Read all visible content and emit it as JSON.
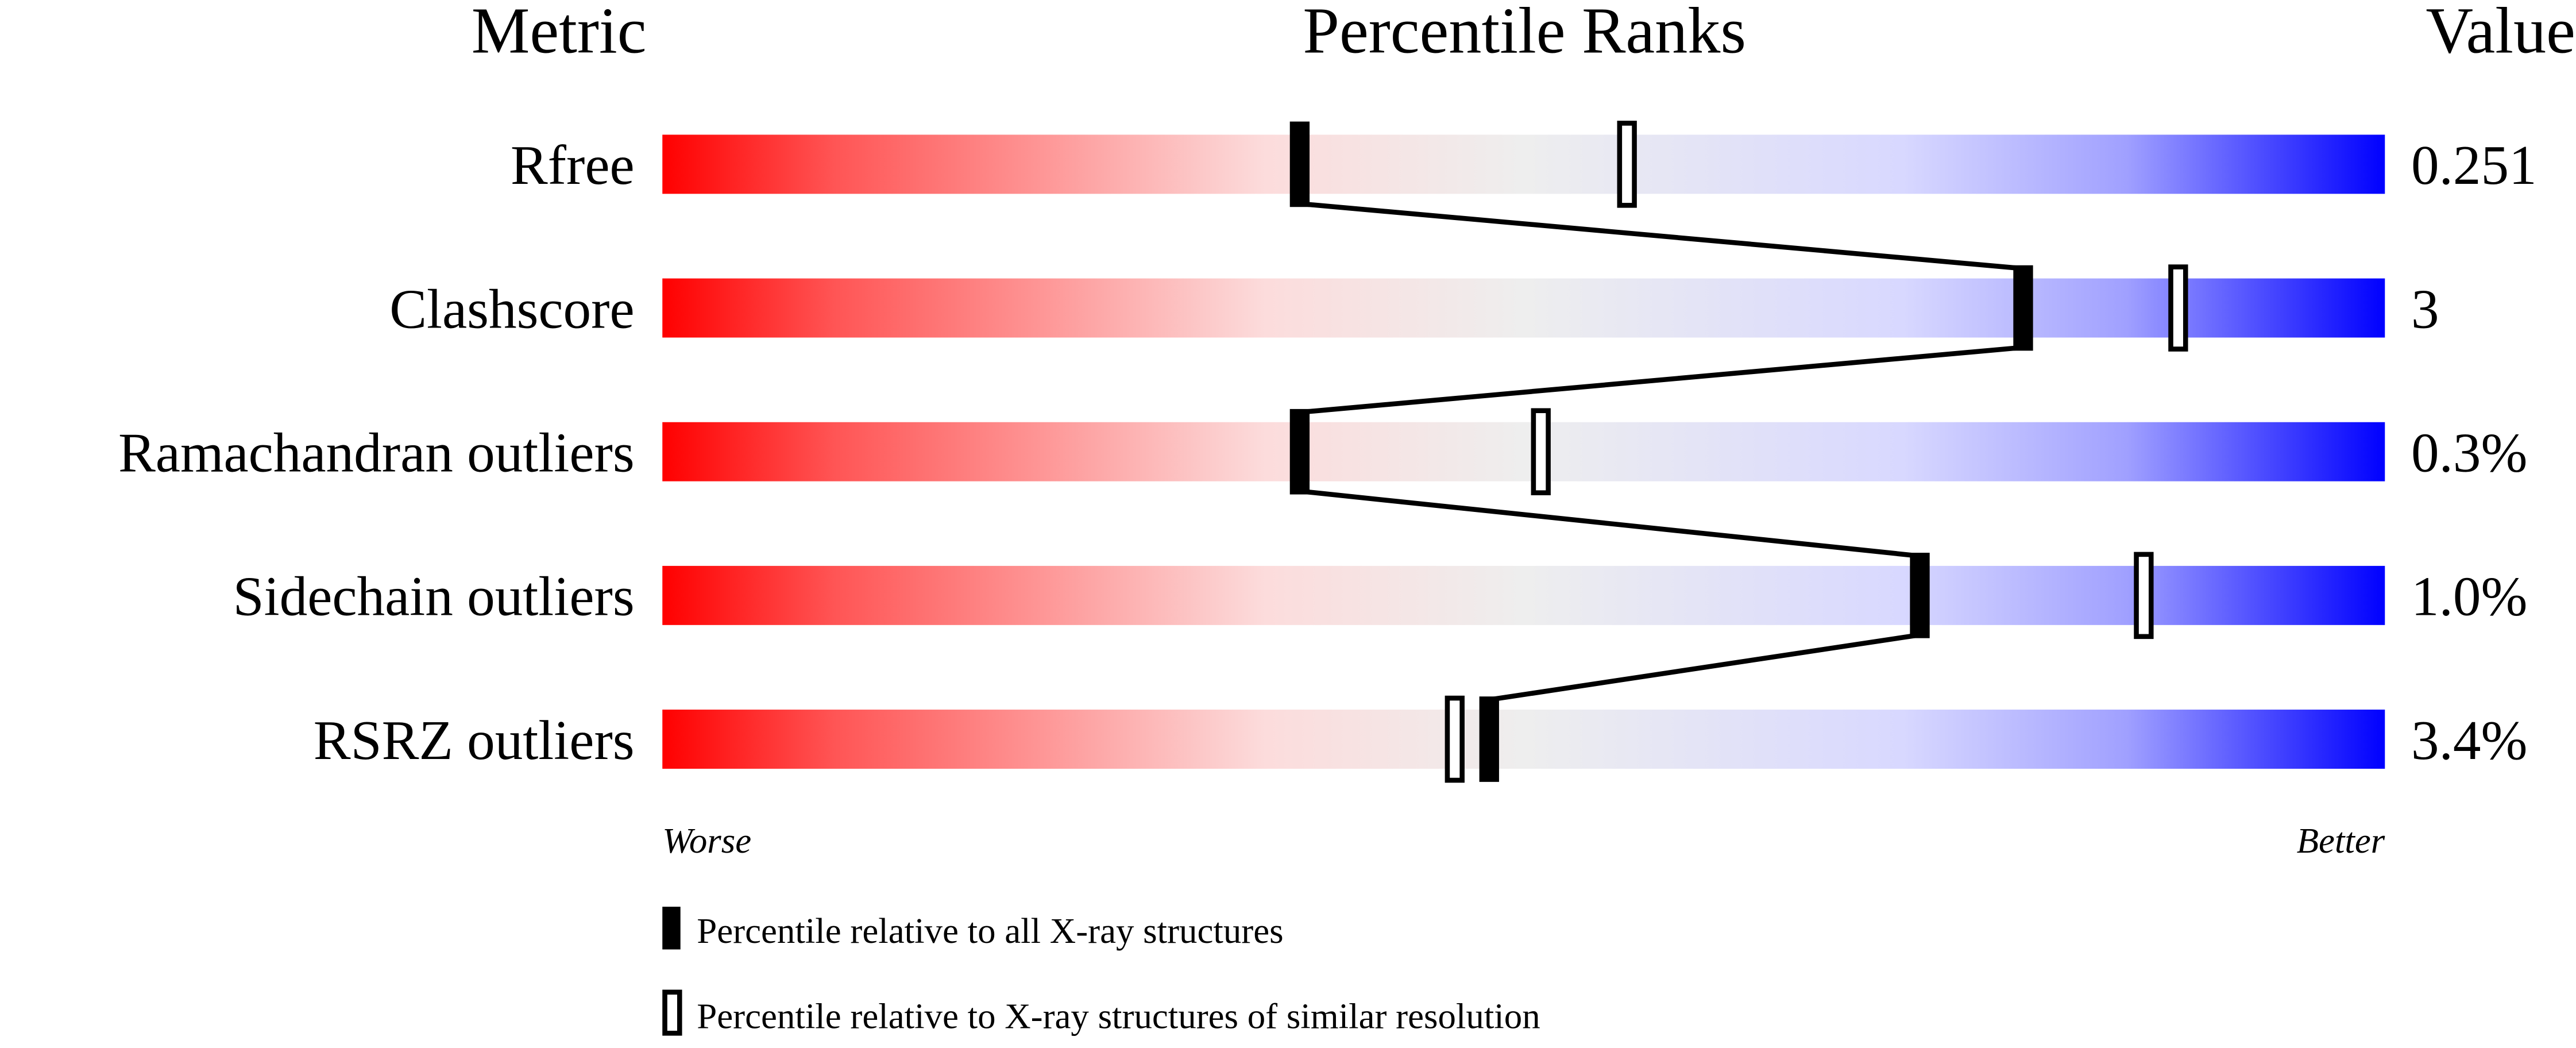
{
  "chart_data": {
    "type": "percentile-bar",
    "headers": {
      "metric": "Metric",
      "ranks": "Percentile Ranks",
      "value": "Value"
    },
    "xlim": [
      0,
      100
    ],
    "rows": [
      {
        "metric": "Rfree",
        "value": "0.251",
        "percentile_all": 37,
        "percentile_similar": 56
      },
      {
        "metric": "Clashscore",
        "value": "3",
        "percentile_all": 79,
        "percentile_similar": 88
      },
      {
        "metric": "Ramachandran outliers",
        "value": "0.3%",
        "percentile_all": 37,
        "percentile_similar": 51
      },
      {
        "metric": "Sidechain outliers",
        "value": "1.0%",
        "percentile_all": 73,
        "percentile_similar": 86
      },
      {
        "metric": "RSRZ outliers",
        "value": "3.4%",
        "percentile_all": 48,
        "percentile_similar": 46
      }
    ],
    "axis_labels": {
      "left": "Worse",
      "right": "Better"
    },
    "legend": {
      "filled": "Percentile relative to all X-ray structures",
      "hollow": "Percentile relative to X-ray structures of similar resolution"
    },
    "colors": {
      "worse": "#ff0000",
      "mid": "#eeeeee",
      "better": "#0000ff"
    }
  }
}
